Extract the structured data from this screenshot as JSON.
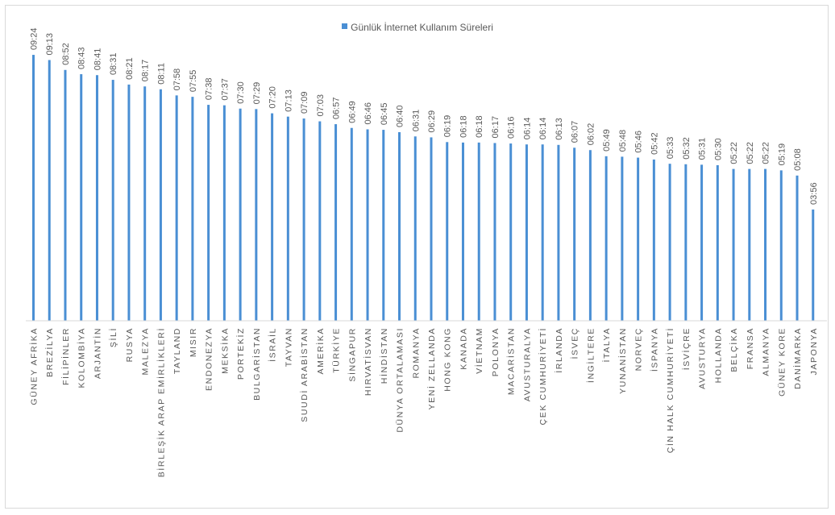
{
  "chart_data": {
    "type": "bar",
    "legend": {
      "label": "Günlük İnternet Kullanım Süreleri",
      "placement": "top"
    },
    "title": "",
    "xlabel": "",
    "ylabel": "",
    "grid": false,
    "color": "#4a8fd4",
    "ylim_minutes": [
      0,
      600
    ],
    "categories": [
      "GÜNEY AFRİKA",
      "BREZİLYA",
      "FİLİPİNLER",
      "KOLOMBİYA",
      "ARJANTİN",
      "ŞİLİ",
      "RUSYA",
      "MALEZYA",
      "BİRLEŞİK ARAP EMİRLİKLERİ",
      "TAYLAND",
      "MISIR",
      "ENDONEZYA",
      "MEKSİKA",
      "PORTEKİZ",
      "BULGARİSTAN",
      "İSRAİL",
      "TAYVAN",
      "SUUDİ ARABİSTAN",
      "AMERİKA",
      "TÜRKİYE",
      "SİNGAPUR",
      "HIRVATİSVAN",
      "HİNDİSTAN",
      "DÜNYA ORTALAMASI",
      "ROMANYA",
      "YENİ ZELLANDA",
      "HONG KONG",
      "KANADA",
      "VİETNAM",
      "POLONYA",
      "MACARİSTAN",
      "AVUSTURALYA",
      "ÇEK CUMHURİYETİ",
      "İRLANDA",
      "İSVEÇ",
      "İNGİLTERE",
      "İTALYA",
      "YUNANİSTAN",
      "NORVEÇ",
      "İSPANYA",
      "ÇİN HALK CUMHURİYETİ",
      "İSVİÇRE",
      "AVUSTURYA",
      "HOLLANDA",
      "BELÇİKA",
      "FRANSA",
      "ALMANYA",
      "GÜNEY KORE",
      "DANİMARKA",
      "JAPONYA"
    ],
    "labels": [
      "09:24",
      "09:13",
      "08:52",
      "08:43",
      "08:41",
      "08:31",
      "08:21",
      "08:17",
      "08:11",
      "07:58",
      "07:55",
      "07:38",
      "07:37",
      "07:30",
      "07:29",
      "07:20",
      "07:13",
      "07:09",
      "07:03",
      "06:57",
      "06:49",
      "06:46",
      "06:45",
      "06:40",
      "06:31",
      "06:29",
      "06:19",
      "06:18",
      "06:18",
      "06:17",
      "06:16",
      "06:14",
      "06:14",
      "06:13",
      "06:07",
      "06:02",
      "05:49",
      "05:48",
      "05:46",
      "05:42",
      "05:33",
      "05:32",
      "05:31",
      "05:30",
      "05:22",
      "05:22",
      "05:22",
      "05:19",
      "05:08",
      "03:56"
    ]
  }
}
